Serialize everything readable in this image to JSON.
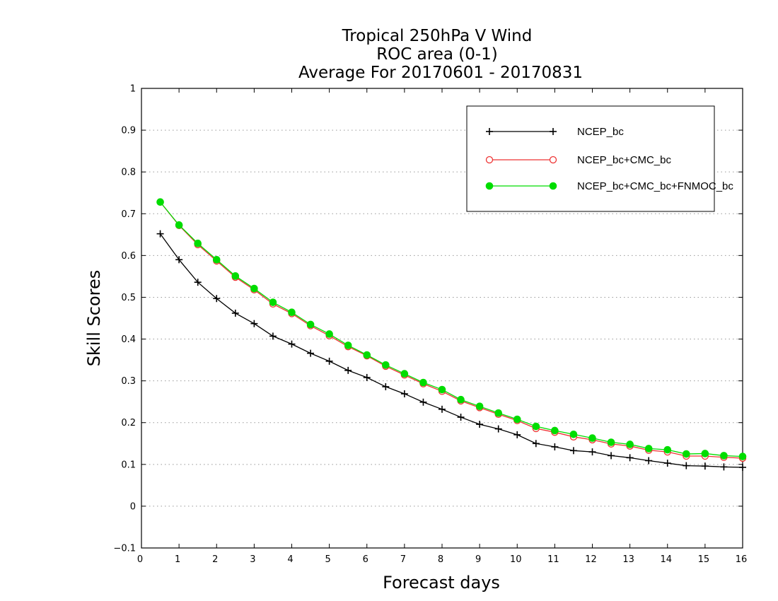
{
  "chart_data": {
    "type": "line",
    "title_lines": [
      "Tropical 250hPa V Wind",
      "ROC area (0-1)",
      "Average For 20170601 - 20170831"
    ],
    "xlabel": "Forecast days",
    "ylabel": "Skill Scores",
    "xlim": [
      0,
      16
    ],
    "ylim": [
      -0.1,
      1
    ],
    "x_ticks": [
      0,
      1,
      2,
      3,
      4,
      5,
      6,
      7,
      8,
      9,
      10,
      11,
      12,
      13,
      14,
      15,
      16
    ],
    "y_ticks": [
      -0.1,
      0,
      0.1,
      0.2,
      0.3,
      0.4,
      0.5,
      0.6,
      0.7,
      0.8,
      0.9,
      1
    ],
    "y_tick_labels": [
      "−0.1",
      "0",
      "0.1",
      "0.2",
      "0.3",
      "0.4",
      "0.5",
      "0.6",
      "0.7",
      "0.8",
      "0.9",
      "1"
    ],
    "grid": "horizontal dotted",
    "legend_position": "top-right",
    "x": [
      0.5,
      1,
      1.5,
      2,
      2.5,
      3,
      3.5,
      4,
      4.5,
      5,
      5.5,
      6,
      6.5,
      7,
      7.5,
      8,
      8.5,
      9,
      9.5,
      10,
      10.5,
      11,
      11.5,
      12,
      12.5,
      13,
      13.5,
      14,
      14.5,
      15,
      15.5,
      16
    ],
    "series": [
      {
        "name": "NCEP_bc",
        "color": "#000000",
        "marker": "plus",
        "values": [
          0.652,
          0.59,
          0.536,
          0.497,
          0.462,
          0.437,
          0.407,
          0.388,
          0.366,
          0.347,
          0.325,
          0.308,
          0.286,
          0.269,
          0.249,
          0.232,
          0.213,
          0.196,
          0.185,
          0.171,
          0.15,
          0.142,
          0.133,
          0.13,
          0.121,
          0.116,
          0.109,
          0.103,
          0.097,
          0.096,
          0.094,
          0.093
        ]
      },
      {
        "name": "NCEP_bc+CMC_bc",
        "color": "#ee3333",
        "marker": "open-circle",
        "values": [
          0.728,
          0.672,
          0.626,
          0.587,
          0.548,
          0.518,
          0.484,
          0.461,
          0.432,
          0.408,
          0.382,
          0.36,
          0.335,
          0.314,
          0.293,
          0.275,
          0.252,
          0.236,
          0.22,
          0.205,
          0.186,
          0.177,
          0.166,
          0.159,
          0.149,
          0.144,
          0.134,
          0.13,
          0.12,
          0.12,
          0.117,
          0.115
        ]
      },
      {
        "name": "NCEP_bc+CMC_bc+FNMOC_bc",
        "color": "#00dd00",
        "marker": "filled-circle",
        "values": [
          0.728,
          0.673,
          0.629,
          0.59,
          0.551,
          0.521,
          0.488,
          0.464,
          0.435,
          0.412,
          0.385,
          0.362,
          0.338,
          0.317,
          0.296,
          0.279,
          0.255,
          0.239,
          0.223,
          0.208,
          0.191,
          0.181,
          0.172,
          0.163,
          0.153,
          0.148,
          0.138,
          0.135,
          0.125,
          0.126,
          0.121,
          0.119
        ]
      }
    ]
  }
}
